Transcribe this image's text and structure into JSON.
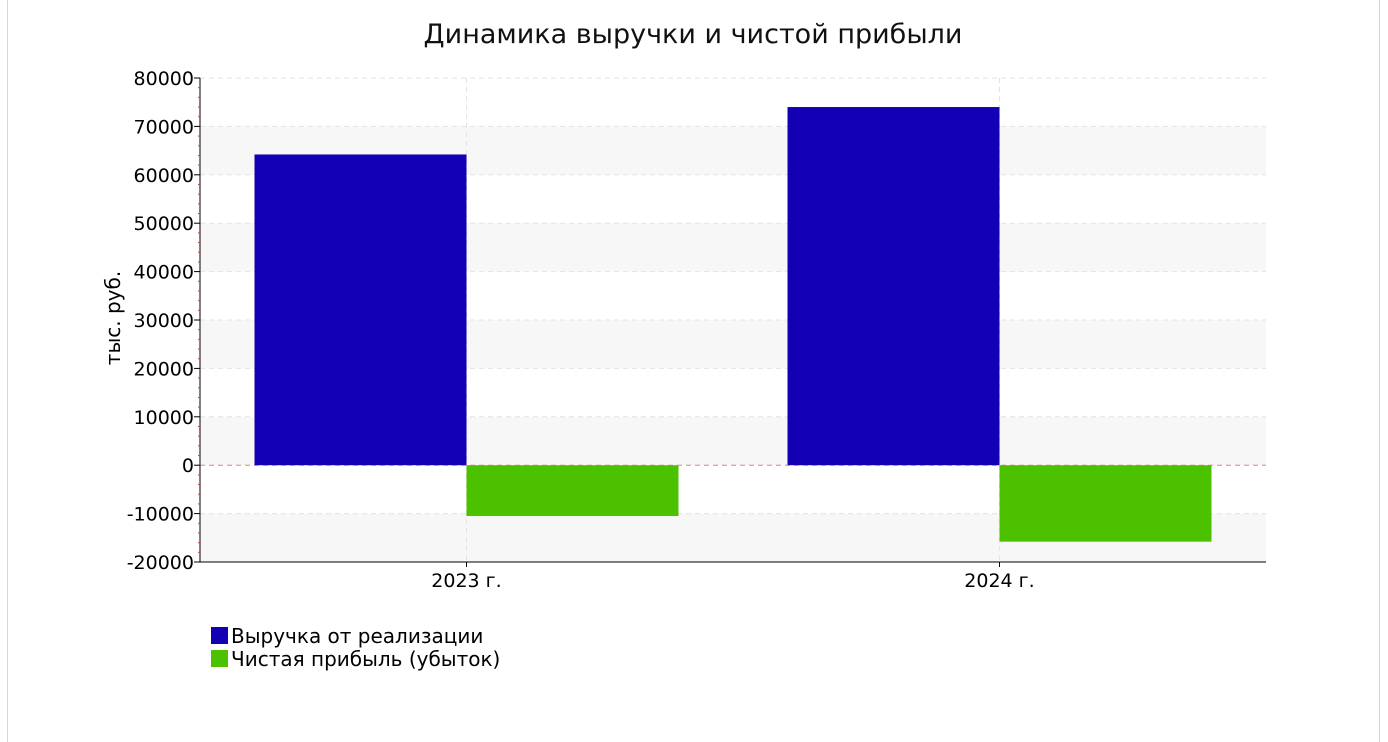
{
  "chart_data": {
    "type": "bar",
    "title": "Динамика выручки и чистой прибыли",
    "xlabel": "",
    "ylabel": "тыс. руб.",
    "categories": [
      "2023 г.",
      "2024 г."
    ],
    "series": [
      {
        "name": "Выручка от реализации",
        "values": [
          64200,
          74000
        ],
        "color": "#1400b4"
      },
      {
        "name": "Чистая прибыль (убыток)",
        "values": [
          -10500,
          -15800
        ],
        "color": "#4cc100"
      }
    ],
    "ylim": [
      -20000,
      80000
    ],
    "yticks": [
      "80000",
      "70000",
      "60000",
      "50000",
      "40000",
      "30000",
      "20000",
      "10000",
      "0",
      "-10000",
      "-20000"
    ],
    "grid": true,
    "legend_position": "bottom-left"
  }
}
